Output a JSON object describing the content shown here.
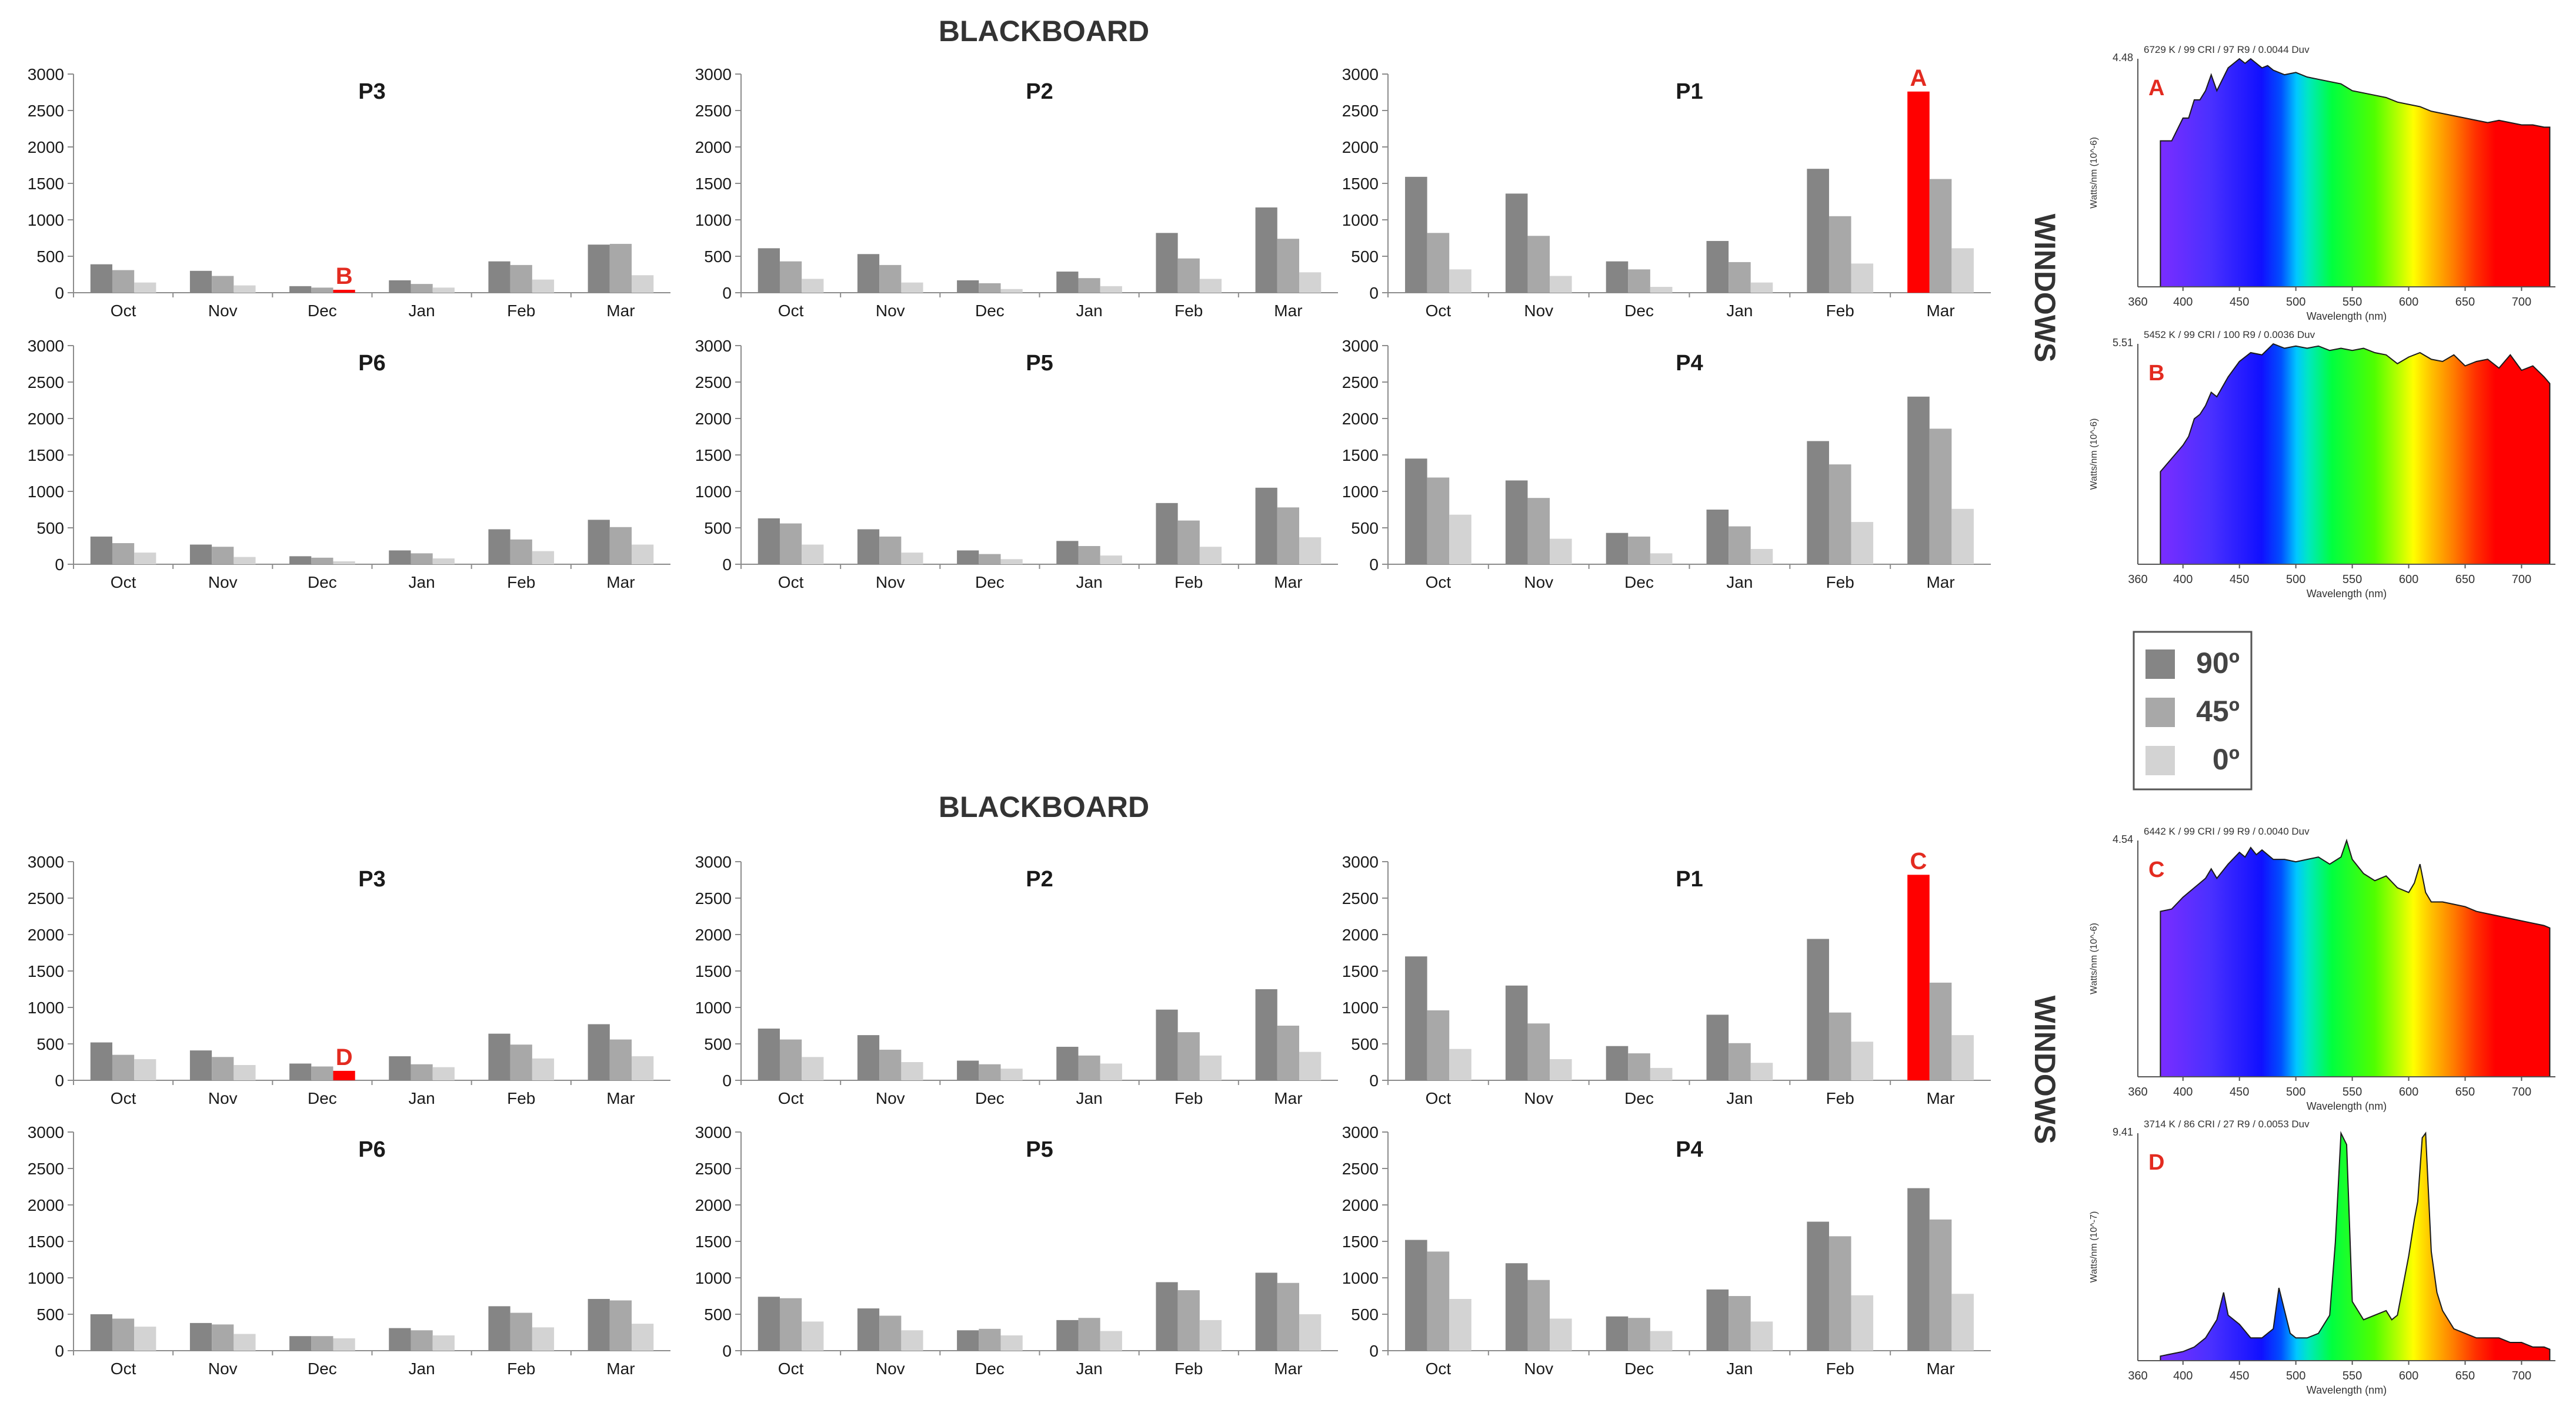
{
  "colors": {
    "s90": "#858585",
    "s45": "#a8a8a8",
    "s0": "#d3d3d3",
    "highlight": "#ff0000",
    "axis": "#8c8c8c",
    "text": "#1a1a1a",
    "label": "#e32b20"
  },
  "sections": [
    {
      "title": "BLACKBOARD",
      "side_label": "WINDOWS"
    },
    {
      "title": "BLACKBOARD",
      "side_label": "WINDOWS"
    }
  ],
  "legend": [
    {
      "label": "90º",
      "color": "#858585"
    },
    {
      "label": "45º",
      "color": "#a8a8a8"
    },
    {
      "label": "0º",
      "color": "#d3d3d3"
    }
  ],
  "chart_data": [
    {
      "type": "bar",
      "title": "P3",
      "categories": [
        "Oct",
        "Nov",
        "Dec",
        "Jan",
        "Feb",
        "Mar"
      ],
      "ylim": [
        0,
        3000
      ],
      "yticks": [
        0,
        500,
        1000,
        1500,
        2000,
        2500,
        3000
      ],
      "series": [
        {
          "name": "90º",
          "values": [
            390,
            300,
            90,
            170,
            430,
            660
          ]
        },
        {
          "name": "45º",
          "values": [
            310,
            230,
            70,
            120,
            380,
            670
          ]
        },
        {
          "name": "0º",
          "values": [
            140,
            100,
            40,
            70,
            180,
            240
          ]
        }
      ],
      "annotation": {
        "text": "B",
        "series": 2,
        "index": 2
      }
    },
    {
      "type": "bar",
      "title": "P2",
      "categories": [
        "Oct",
        "Nov",
        "Dec",
        "Jan",
        "Feb",
        "Mar"
      ],
      "ylim": [
        0,
        3000
      ],
      "yticks": [
        0,
        500,
        1000,
        1500,
        2000,
        2500,
        3000
      ],
      "series": [
        {
          "name": "90º",
          "values": [
            610,
            530,
            170,
            290,
            820,
            1170
          ]
        },
        {
          "name": "45º",
          "values": [
            430,
            380,
            130,
            200,
            470,
            740
          ]
        },
        {
          "name": "0º",
          "values": [
            190,
            140,
            50,
            90,
            190,
            280
          ]
        }
      ]
    },
    {
      "type": "bar",
      "title": "P1",
      "categories": [
        "Oct",
        "Nov",
        "Dec",
        "Jan",
        "Feb",
        "Mar"
      ],
      "ylim": [
        0,
        3000
      ],
      "yticks": [
        0,
        500,
        1000,
        1500,
        2000,
        2500,
        3000
      ],
      "series": [
        {
          "name": "90º",
          "values": [
            1590,
            1360,
            430,
            710,
            1700,
            2760
          ]
        },
        {
          "name": "45º",
          "values": [
            820,
            780,
            320,
            420,
            1050,
            1560
          ]
        },
        {
          "name": "0º",
          "values": [
            320,
            230,
            80,
            140,
            400,
            610
          ]
        }
      ],
      "annotation": {
        "text": "A",
        "series": 0,
        "index": 5
      }
    },
    {
      "type": "bar",
      "title": "P6",
      "categories": [
        "Oct",
        "Nov",
        "Dec",
        "Jan",
        "Feb",
        "Mar"
      ],
      "ylim": [
        0,
        3000
      ],
      "yticks": [
        0,
        500,
        1000,
        1500,
        2000,
        2500,
        3000
      ],
      "series": [
        {
          "name": "90º",
          "values": [
            380,
            270,
            110,
            190,
            480,
            610
          ]
        },
        {
          "name": "45º",
          "values": [
            290,
            240,
            90,
            150,
            340,
            510
          ]
        },
        {
          "name": "0º",
          "values": [
            160,
            100,
            40,
            80,
            180,
            270
          ]
        }
      ]
    },
    {
      "type": "bar",
      "title": "P5",
      "categories": [
        "Oct",
        "Nov",
        "Dec",
        "Jan",
        "Feb",
        "Mar"
      ],
      "ylim": [
        0,
        3000
      ],
      "yticks": [
        0,
        500,
        1000,
        1500,
        2000,
        2500,
        3000
      ],
      "series": [
        {
          "name": "90º",
          "values": [
            630,
            480,
            190,
            320,
            840,
            1050
          ]
        },
        {
          "name": "45º",
          "values": [
            560,
            380,
            140,
            250,
            600,
            780
          ]
        },
        {
          "name": "0º",
          "values": [
            270,
            160,
            70,
            120,
            240,
            370
          ]
        }
      ]
    },
    {
      "type": "bar",
      "title": "P4",
      "categories": [
        "Oct",
        "Nov",
        "Dec",
        "Jan",
        "Feb",
        "Mar"
      ],
      "ylim": [
        0,
        3000
      ],
      "yticks": [
        0,
        500,
        1000,
        1500,
        2000,
        2500,
        3000
      ],
      "series": [
        {
          "name": "90º",
          "values": [
            1450,
            1150,
            430,
            750,
            1690,
            2300
          ]
        },
        {
          "name": "45º",
          "values": [
            1190,
            910,
            380,
            520,
            1370,
            1860
          ]
        },
        {
          "name": "0º",
          "values": [
            680,
            350,
            150,
            210,
            580,
            760
          ]
        }
      ]
    },
    {
      "type": "bar",
      "title": "P3",
      "categories": [
        "Oct",
        "Nov",
        "Dec",
        "Jan",
        "Feb",
        "Mar"
      ],
      "ylim": [
        0,
        3000
      ],
      "yticks": [
        0,
        500,
        1000,
        1500,
        2000,
        2500,
        3000
      ],
      "series": [
        {
          "name": "90º",
          "values": [
            520,
            410,
            230,
            330,
            640,
            770
          ]
        },
        {
          "name": "45º",
          "values": [
            350,
            320,
            190,
            220,
            490,
            560
          ]
        },
        {
          "name": "0º",
          "values": [
            290,
            210,
            130,
            180,
            300,
            330
          ]
        }
      ],
      "annotation": {
        "text": "D",
        "series": 2,
        "index": 2
      }
    },
    {
      "type": "bar",
      "title": "P2",
      "categories": [
        "Oct",
        "Nov",
        "Dec",
        "Jan",
        "Feb",
        "Mar"
      ],
      "ylim": [
        0,
        3000
      ],
      "yticks": [
        0,
        500,
        1000,
        1500,
        2000,
        2500,
        3000
      ],
      "series": [
        {
          "name": "90º",
          "values": [
            710,
            620,
            270,
            460,
            970,
            1250
          ]
        },
        {
          "name": "45º",
          "values": [
            560,
            420,
            220,
            340,
            660,
            750
          ]
        },
        {
          "name": "0º",
          "values": [
            320,
            250,
            160,
            230,
            340,
            390
          ]
        }
      ]
    },
    {
      "type": "bar",
      "title": "P1",
      "categories": [
        "Oct",
        "Nov",
        "Dec",
        "Jan",
        "Feb",
        "Mar"
      ],
      "ylim": [
        0,
        3000
      ],
      "yticks": [
        0,
        500,
        1000,
        1500,
        2000,
        2500,
        3000
      ],
      "series": [
        {
          "name": "90º",
          "values": [
            1700,
            1300,
            470,
            900,
            1940,
            2820
          ]
        },
        {
          "name": "45º",
          "values": [
            960,
            780,
            370,
            510,
            930,
            1340
          ]
        },
        {
          "name": "0º",
          "values": [
            430,
            290,
            170,
            240,
            530,
            620
          ]
        }
      ],
      "annotation": {
        "text": "C",
        "series": 0,
        "index": 5
      }
    },
    {
      "type": "bar",
      "title": "P6",
      "categories": [
        "Oct",
        "Nov",
        "Dec",
        "Jan",
        "Feb",
        "Mar"
      ],
      "ylim": [
        0,
        3000
      ],
      "yticks": [
        0,
        500,
        1000,
        1500,
        2000,
        2500,
        3000
      ],
      "series": [
        {
          "name": "90º",
          "values": [
            500,
            380,
            200,
            310,
            610,
            710
          ]
        },
        {
          "name": "45º",
          "values": [
            440,
            360,
            200,
            280,
            520,
            690
          ]
        },
        {
          "name": "0º",
          "values": [
            330,
            230,
            170,
            210,
            320,
            370
          ]
        }
      ]
    },
    {
      "type": "bar",
      "title": "P5",
      "categories": [
        "Oct",
        "Nov",
        "Dec",
        "Jan",
        "Feb",
        "Mar"
      ],
      "ylim": [
        0,
        3000
      ],
      "yticks": [
        0,
        500,
        1000,
        1500,
        2000,
        2500,
        3000
      ],
      "series": [
        {
          "name": "90º",
          "values": [
            740,
            580,
            280,
            420,
            940,
            1070
          ]
        },
        {
          "name": "45º",
          "values": [
            720,
            480,
            300,
            450,
            830,
            930
          ]
        },
        {
          "name": "0º",
          "values": [
            400,
            280,
            210,
            270,
            420,
            500
          ]
        }
      ]
    },
    {
      "type": "bar",
      "title": "P4",
      "categories": [
        "Oct",
        "Nov",
        "Dec",
        "Jan",
        "Feb",
        "Mar"
      ],
      "ylim": [
        0,
        3000
      ],
      "yticks": [
        0,
        500,
        1000,
        1500,
        2000,
        2500,
        3000
      ],
      "series": [
        {
          "name": "90º",
          "values": [
            1520,
            1200,
            470,
            840,
            1770,
            2230
          ]
        },
        {
          "name": "45º",
          "values": [
            1360,
            970,
            450,
            750,
            1570,
            1800
          ]
        },
        {
          "name": "0º",
          "values": [
            710,
            440,
            270,
            400,
            760,
            780
          ]
        }
      ]
    },
    {
      "type": "area",
      "label": "A",
      "header": "6729 K / 99 CRI / 97 R9 / 0.0044 Duv",
      "ymax_label": "4.48",
      "ylabel": "Watts/nm (10^-6)",
      "xlabel": "Wavelength (nm)",
      "xlim": [
        360,
        730
      ],
      "xticks": [
        400,
        450,
        500,
        550,
        600,
        650,
        700
      ],
      "x": [
        380,
        390,
        400,
        405,
        410,
        415,
        420,
        425,
        430,
        440,
        450,
        455,
        460,
        465,
        470,
        475,
        480,
        490,
        500,
        510,
        520,
        530,
        540,
        550,
        560,
        570,
        580,
        590,
        600,
        610,
        620,
        630,
        640,
        650,
        660,
        670,
        680,
        690,
        700,
        710,
        720,
        725
      ],
      "y": [
        0.64,
        0.64,
        0.74,
        0.74,
        0.82,
        0.82,
        0.86,
        0.93,
        0.86,
        0.96,
        1.0,
        0.98,
        1.0,
        0.98,
        0.96,
        0.97,
        0.95,
        0.93,
        0.94,
        0.92,
        0.91,
        0.9,
        0.89,
        0.86,
        0.85,
        0.84,
        0.83,
        0.81,
        0.8,
        0.79,
        0.77,
        0.76,
        0.75,
        0.74,
        0.73,
        0.72,
        0.73,
        0.72,
        0.71,
        0.71,
        0.7,
        0.7
      ]
    },
    {
      "type": "area",
      "label": "B",
      "header": "5452 K / 99 CRI / 100 R9 / 0.0036 Duv",
      "ymax_label": "5.51",
      "ylabel": "Watts/nm (10^-6)",
      "xlabel": "Wavelength (nm)",
      "xlim": [
        360,
        730
      ],
      "xticks": [
        400,
        450,
        500,
        550,
        600,
        650,
        700
      ],
      "x": [
        380,
        390,
        400,
        405,
        410,
        415,
        420,
        425,
        430,
        440,
        450,
        460,
        470,
        480,
        490,
        500,
        510,
        520,
        530,
        540,
        550,
        560,
        570,
        580,
        590,
        600,
        610,
        620,
        630,
        640,
        650,
        660,
        670,
        680,
        690,
        700,
        710,
        720,
        725
      ],
      "y": [
        0.42,
        0.48,
        0.54,
        0.58,
        0.66,
        0.68,
        0.72,
        0.78,
        0.76,
        0.85,
        0.92,
        0.96,
        0.95,
        1.0,
        0.98,
        0.99,
        0.98,
        0.99,
        0.97,
        0.98,
        0.97,
        0.98,
        0.96,
        0.95,
        0.91,
        0.94,
        0.96,
        0.93,
        0.92,
        0.95,
        0.9,
        0.92,
        0.93,
        0.89,
        0.95,
        0.88,
        0.9,
        0.85,
        0.82
      ]
    },
    {
      "type": "area",
      "label": "C",
      "header": "6442 K / 99 CRI / 99 R9 / 0.0040 Duv",
      "ymax_label": "4.54",
      "ylabel": "Watts/nm (10^-6)",
      "xlabel": "Wavelength (nm)",
      "xlim": [
        360,
        730
      ],
      "xticks": [
        400,
        450,
        500,
        550,
        600,
        650,
        700
      ],
      "x": [
        380,
        390,
        400,
        405,
        410,
        415,
        420,
        425,
        430,
        440,
        450,
        455,
        460,
        465,
        470,
        480,
        490,
        500,
        510,
        520,
        530,
        540,
        545,
        550,
        560,
        570,
        580,
        590,
        600,
        605,
        610,
        615,
        620,
        630,
        640,
        650,
        660,
        670,
        680,
        690,
        700,
        710,
        720,
        725
      ],
      "y": [
        0.7,
        0.71,
        0.76,
        0.78,
        0.8,
        0.82,
        0.84,
        0.88,
        0.84,
        0.9,
        0.95,
        0.93,
        0.97,
        0.94,
        0.96,
        0.92,
        0.92,
        0.91,
        0.92,
        0.93,
        0.9,
        0.93,
        1.0,
        0.92,
        0.86,
        0.83,
        0.85,
        0.8,
        0.78,
        0.82,
        0.9,
        0.78,
        0.74,
        0.74,
        0.73,
        0.72,
        0.7,
        0.69,
        0.68,
        0.67,
        0.66,
        0.65,
        0.64,
        0.63
      ]
    },
    {
      "type": "area",
      "label": "D",
      "header": "3714 K / 86 CRI / 27 R9 / 0.0053 Duv",
      "ymax_label": "9.41",
      "ylabel": "Watts/nm (10^-7)",
      "xlabel": "Wavelength (nm)",
      "xlim": [
        360,
        730
      ],
      "xticks": [
        400,
        450,
        500,
        550,
        600,
        650,
        700
      ],
      "x": [
        380,
        400,
        410,
        420,
        430,
        436,
        440,
        450,
        460,
        470,
        480,
        485,
        490,
        495,
        500,
        510,
        520,
        530,
        535,
        540,
        545,
        550,
        560,
        570,
        580,
        585,
        590,
        600,
        605,
        608,
        612,
        615,
        620,
        625,
        630,
        640,
        650,
        660,
        670,
        680,
        690,
        700,
        710,
        720,
        725
      ],
      "y": [
        0.02,
        0.04,
        0.06,
        0.1,
        0.18,
        0.3,
        0.2,
        0.16,
        0.1,
        0.1,
        0.14,
        0.32,
        0.22,
        0.12,
        0.1,
        0.1,
        0.12,
        0.2,
        0.52,
        1.0,
        0.95,
        0.26,
        0.18,
        0.2,
        0.22,
        0.18,
        0.2,
        0.46,
        0.62,
        0.7,
        0.98,
        1.0,
        0.48,
        0.3,
        0.22,
        0.14,
        0.12,
        0.1,
        0.1,
        0.1,
        0.08,
        0.08,
        0.06,
        0.06,
        0.05
      ]
    }
  ]
}
